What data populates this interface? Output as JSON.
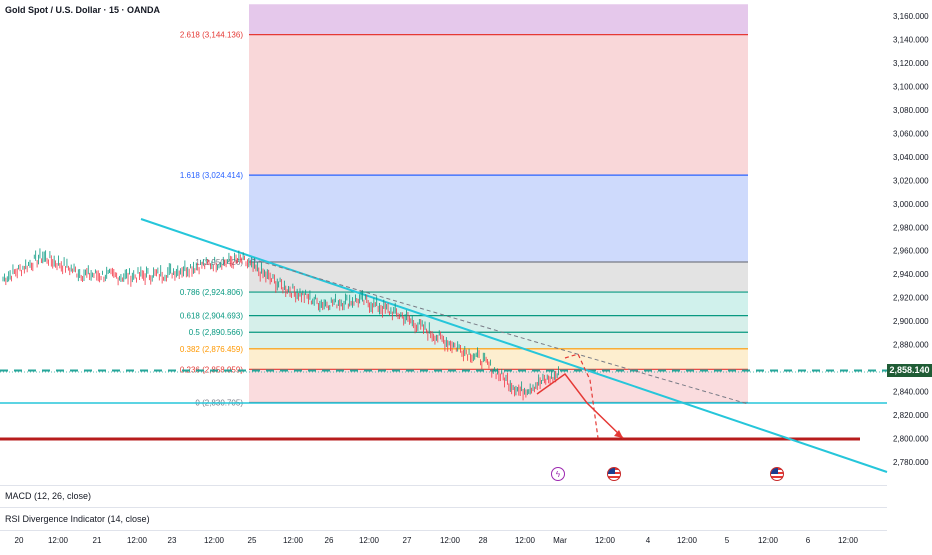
{
  "title": "Gold Spot / U.S. Dollar · 15 · OANDA",
  "panes": {
    "macd_label": "MACD (12, 26, close)",
    "rsi_label": "RSI Divergence Indicator (14, close)"
  },
  "price_axis": {
    "ticks": [
      "3,160.000",
      "3,140.000",
      "3,120.000",
      "3,100.000",
      "3,080.000",
      "3,060.000",
      "3,040.000",
      "3,020.000",
      "3,000.000",
      "2,980.000",
      "2,960.000",
      "2,940.000",
      "2,920.000",
      "2,900.000",
      "2,880.000",
      "2,860.000",
      "2,840.000",
      "2,820.000",
      "2,800.000",
      "2,780.000"
    ],
    "current_price_label": "2,858.140"
  },
  "time_axis": {
    "labels": [
      "20",
      "12:00",
      "21",
      "12:00",
      "23",
      "12:00",
      "25",
      "12:00",
      "26",
      "12:00",
      "27",
      "12:00",
      "28",
      "12:00",
      "Mar",
      "12:00",
      "4",
      "12:00",
      "5",
      "12:00",
      "6",
      "12:00"
    ]
  },
  "fib_levels": [
    {
      "label": "2.618 (3,144.136)",
      "price": 3144.136,
      "line_color": "#e53935",
      "text_color": "#e53935"
    },
    {
      "label": "1.618 (3,024.414)",
      "price": 3024.414,
      "line_color": "#2962ff",
      "text_color": "#2962ff"
    },
    {
      "label": "1 (2,950.426)",
      "price": 2950.426,
      "line_color": "#787b86",
      "text_color": "#787b86"
    },
    {
      "label": "0.786 (2,924.806)",
      "price": 2924.806,
      "line_color": "#089981",
      "text_color": "#089981"
    },
    {
      "label": "0.618 (2,904.693)",
      "price": 2904.693,
      "line_color": "#089981",
      "text_color": "#089981"
    },
    {
      "label": "0.5 (2,890.566)",
      "price": 2890.566,
      "line_color": "#089981",
      "text_color": "#089981"
    },
    {
      "label": "0.382 (2,876.459)",
      "price": 2876.459,
      "line_color": "#ff9800",
      "text_color": "#ff9800"
    },
    {
      "label": "0.236 (2,858.959)",
      "price": 2858.959,
      "line_color": "#e53935",
      "text_color": "#e53935"
    },
    {
      "label": "0 (2,830.705)",
      "price": 2830.705,
      "line_color": "#787b86",
      "text_color": "#787b86"
    }
  ],
  "events": {
    "flash_icon": "flash-icon",
    "flag_icons": [
      "us-flag-icon",
      "us-flag-icon"
    ]
  },
  "chart_data": {
    "type": "line",
    "title": "Gold Spot / U.S. Dollar · 15 · OANDA",
    "ylim": [
      2770,
      3170
    ],
    "current_price": 2858.14,
    "series": [
      {
        "x": [
          "20",
          "12:00",
          "21",
          "12:00",
          "23",
          "12:00",
          "25",
          "12:00",
          "26",
          "12:00",
          "27",
          "12:00",
          "28",
          "12:00",
          "Mar"
        ],
        "values": [
          2936,
          2955,
          2940,
          2938,
          2940,
          2948,
          2952,
          2930,
          2915,
          2918,
          2905,
          2885,
          2868,
          2840,
          2855
        ]
      }
    ],
    "levels": [
      {
        "price": 2858,
        "style": "dashed",
        "color": "#26a69a"
      },
      {
        "price": 2831,
        "style": "solid",
        "color": "#26c6da"
      },
      {
        "price": 2800,
        "style": "solid",
        "color": "#b71c1c"
      }
    ]
  }
}
